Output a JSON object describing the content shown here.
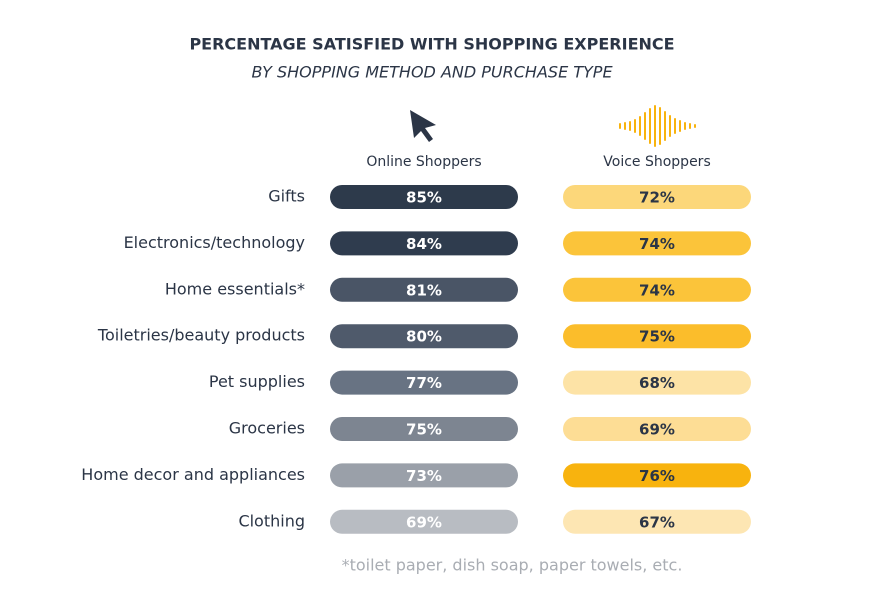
{
  "chart_data": {
    "type": "heatmap",
    "title": "PERCENTAGE SATISFIED WITH SHOPPING EXPERIENCE",
    "subtitle": "BY SHOPPING METHOD AND PURCHASE TYPE",
    "categories": [
      "Gifts",
      "Electronics/technology",
      "Home essentials*",
      "Toiletries/beauty products",
      "Pet supplies",
      "Groceries",
      "Home decor and appliances",
      "Clothing"
    ],
    "series": [
      {
        "name": "Online Shoppers",
        "text_color": "#ffffff",
        "values": [
          85,
          84,
          81,
          80,
          77,
          75,
          73,
          69
        ],
        "value_labels": [
          "85%",
          "84%",
          "81%",
          "80%",
          "77%",
          "75%",
          "73%",
          "69%"
        ],
        "colors": [
          "#2d3a4b",
          "#2f3c4e",
          "#4a5566",
          "#4f5a6b",
          "#687383",
          "#7d8591",
          "#9aa0a9",
          "#b8bcc2"
        ]
      },
      {
        "name": "Voice Shoppers",
        "text_color": "#2b3546",
        "values": [
          72,
          74,
          74,
          75,
          68,
          69,
          76,
          67
        ],
        "value_labels": [
          "72%",
          "74%",
          "74%",
          "75%",
          "68%",
          "69%",
          "76%",
          "67%"
        ],
        "colors": [
          "#fcd77a",
          "#fbc43a",
          "#fbc43a",
          "#fbbd2b",
          "#fde3a6",
          "#fddd95",
          "#f8b30e",
          "#fde6b3"
        ]
      }
    ],
    "footnote": "*toilet paper, dish soap, paper towels, etc."
  }
}
